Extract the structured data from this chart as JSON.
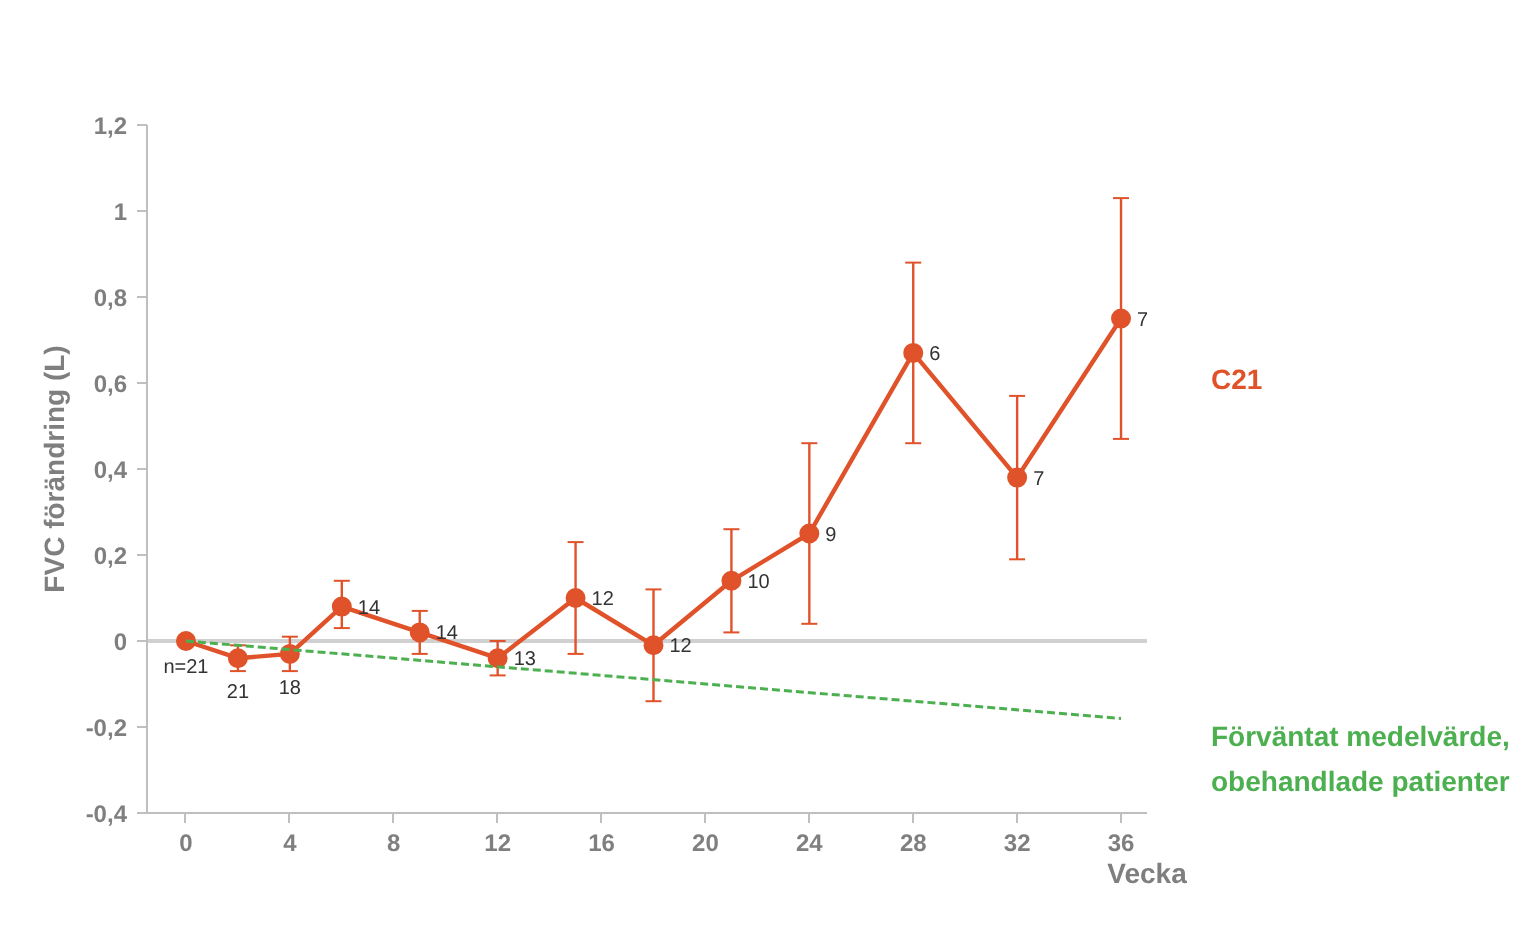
{
  "chart_data": {
    "type": "line",
    "xlabel": "Vecka",
    "ylabel": "FVC förändring (L)",
    "xlim": [
      -1.5,
      37
    ],
    "xticks": [
      0,
      4,
      8,
      12,
      16,
      20,
      24,
      28,
      32,
      36
    ],
    "ylim": [
      -0.4,
      1.2
    ],
    "yticks": [
      {
        "value": -0.4,
        "label": "-0,4"
      },
      {
        "value": -0.2,
        "label": "-0,2"
      },
      0,
      {
        "value": 0.2,
        "label": "0,2"
      },
      {
        "value": 0.4,
        "label": "0,4"
      },
      {
        "value": 0.6,
        "label": "0,6"
      },
      {
        "value": 0.8,
        "label": "0,8"
      },
      1,
      {
        "value": 1.2,
        "label": "1,2"
      }
    ],
    "grid": false,
    "ref_lines": [
      {
        "axis": "y",
        "value": 0,
        "color": "#d0d0d0"
      }
    ],
    "series": [
      {
        "name": "C21",
        "color": "#e0522a",
        "marker": "circle",
        "line_style": "solid",
        "x": [
          0,
          2,
          4,
          6,
          9,
          12,
          15,
          18,
          21,
          24,
          28,
          32,
          36
        ],
        "values": [
          0,
          -0.04,
          -0.03,
          0.08,
          0.02,
          -0.04,
          0.1,
          -0.01,
          0.14,
          0.25,
          0.67,
          0.38,
          0.75
        ],
        "errors": [
          null,
          [
            -0.07,
            -0.01
          ],
          [
            -0.07,
            0.01
          ],
          [
            0.03,
            0.14
          ],
          [
            -0.03,
            0.07
          ],
          [
            -0.08,
            0.0
          ],
          [
            -0.03,
            0.23
          ],
          [
            -0.14,
            0.12
          ],
          [
            0.02,
            0.26
          ],
          [
            0.04,
            0.46
          ],
          [
            0.46,
            0.88
          ],
          [
            0.19,
            0.57
          ],
          [
            0.47,
            1.03
          ]
        ]
      },
      {
        "name": "Förväntat medelvärde,\nobehandlade patienter",
        "color": "#4caf50",
        "type": "line",
        "marker": "none",
        "line_style": "dashed",
        "x": [
          0,
          36
        ],
        "values": [
          0,
          -0.18
        ]
      }
    ],
    "annotations": [
      {
        "text": "n=21",
        "x": 0,
        "y": 0
      },
      {
        "text": "21",
        "x": 2,
        "y": -0.04
      },
      {
        "text": "18",
        "x": 4,
        "y": -0.03
      },
      {
        "text": "14",
        "x": 6,
        "y": 0.08
      },
      {
        "text": "14",
        "x": 9,
        "y": 0.02
      },
      {
        "text": "13",
        "x": 12,
        "y": -0.04
      },
      {
        "text": "12",
        "x": 15,
        "y": 0.1
      },
      {
        "text": "12",
        "x": 18,
        "y": -0.01
      },
      {
        "text": "10",
        "x": 21,
        "y": 0.14
      },
      {
        "text": "9",
        "x": 24,
        "y": 0.25
      },
      {
        "text": "6",
        "x": 28,
        "y": 0.67
      },
      {
        "text": "7",
        "x": 32,
        "y": 0.38
      },
      {
        "text": "7",
        "x": 36,
        "y": 0.75
      }
    ]
  }
}
